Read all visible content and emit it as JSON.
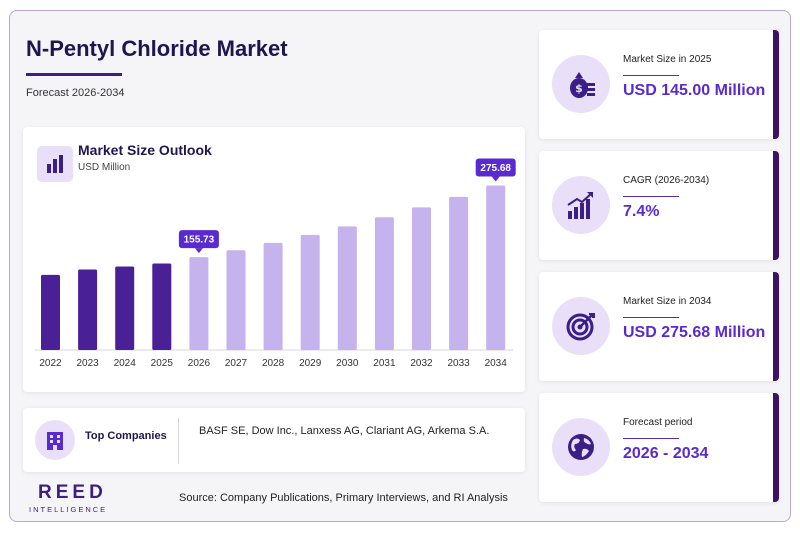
{
  "header": {
    "title": "N-Pentyl Chloride Market",
    "subtitle": "Forecast 2026-2034"
  },
  "chart_card": {
    "title": "Market Size Outlook",
    "unit": "USD Million"
  },
  "chart_data": {
    "type": "bar",
    "categories": [
      "2022",
      "2023",
      "2024",
      "2025",
      "2026",
      "2027",
      "2028",
      "2029",
      "2030",
      "2031",
      "2032",
      "2033",
      "2034"
    ],
    "values": [
      126.0,
      135.0,
      140.0,
      145.0,
      155.73,
      167.2,
      179.6,
      192.9,
      207.2,
      222.5,
      239.0,
      256.7,
      275.68
    ],
    "data_labels": {
      "4": "155.73",
      "12": "275.68"
    },
    "historical_color": "#4a2096",
    "forecast_color": "#c4b3ec",
    "label_bg_color": "#5a2ad1",
    "ylim": [
      0,
      290
    ],
    "grid": false
  },
  "companies": {
    "label": "Top Companies",
    "list": "BASF SE, Dow Inc., Lanxess AG, Clariant AG, Arkema S.A.",
    "icon": "building-icon"
  },
  "logo": {
    "name": "REED",
    "tagline": "INTELLIGENCE"
  },
  "source": "Source: Company Publications, Primary Interviews, and RI Analysis",
  "stats": [
    {
      "label": "Market Size in 2025",
      "value": "USD 145.00 Million",
      "icon": "money-bag-icon"
    },
    {
      "label": "CAGR (2026-2034)",
      "value": "7.4%",
      "icon": "growth-chart-icon"
    },
    {
      "label": "Market Size in 2034",
      "value": "USD 275.68 Million",
      "icon": "target-icon"
    },
    {
      "label": "Forecast period",
      "value": "2026 - 2034",
      "icon": "globe-icon"
    }
  ],
  "colors": {
    "accent": "#5a2ad1",
    "dark_purple": "#3b1e86",
    "card_border": "#3b1360",
    "icon_bg": "#eadff8"
  }
}
